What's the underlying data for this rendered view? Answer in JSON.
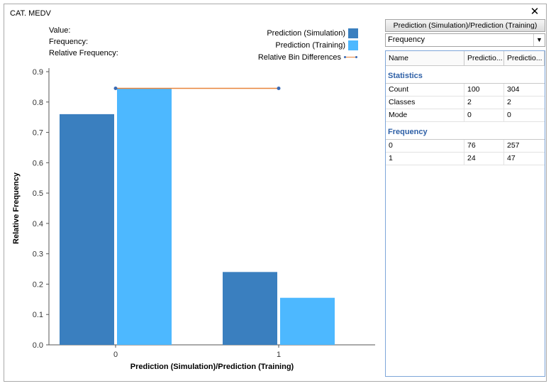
{
  "window": {
    "title": "CAT. MEDV",
    "close_glyph": "✕"
  },
  "info": {
    "value_label": "Value:",
    "frequency_label": "Frequency:",
    "relfreq_label": "Relative Frequency:"
  },
  "legend": {
    "items": [
      {
        "label": "Prediction (Simulation)",
        "color": "#3a7fbf"
      },
      {
        "label": "Prediction (Training)",
        "color": "#4db8ff"
      },
      {
        "label": "Relative Bin Differences",
        "line_color": "#e8843a",
        "marker_color": "#3a6ab5"
      }
    ]
  },
  "chart_data": {
    "type": "bar",
    "title": "",
    "xlabel": "Prediction (Simulation)/Prediction (Training)",
    "ylabel": "Relative Frequency",
    "categories": [
      "0",
      "1"
    ],
    "series": [
      {
        "name": "Prediction (Simulation)",
        "values": [
          0.76,
          0.24
        ],
        "color": "#3a7fbf"
      },
      {
        "name": "Prediction (Training)",
        "values": [
          0.845,
          0.155
        ],
        "color": "#4db8ff"
      }
    ],
    "overlay_line": {
      "name": "Relative Bin Differences",
      "x": [
        "0",
        "1"
      ],
      "values": [
        0.845,
        0.845
      ],
      "color": "#e8843a",
      "marker_color": "#3a6ab5"
    },
    "ylim": [
      0,
      0.9
    ],
    "yticks": [
      "0.0",
      "0.1",
      "0.2",
      "0.3",
      "0.4",
      "0.5",
      "0.6",
      "0.7",
      "0.8",
      "0.9"
    ],
    "grid": false,
    "legend_position": "top-right"
  },
  "panel": {
    "button_label": "Prediction (Simulation)/Prediction (Training)",
    "select_value": "Frequency",
    "columns": [
      "Name",
      "Predictio...",
      "Predictio..."
    ],
    "sections": [
      {
        "title": "Statistics",
        "rows": [
          [
            "Count",
            "100",
            "304"
          ],
          [
            "Classes",
            "2",
            "2"
          ],
          [
            "Mode",
            "0",
            "0"
          ]
        ]
      },
      {
        "title": "Frequency",
        "rows": [
          [
            "0",
            "76",
            "257"
          ],
          [
            "1",
            "24",
            "47"
          ]
        ]
      }
    ]
  }
}
